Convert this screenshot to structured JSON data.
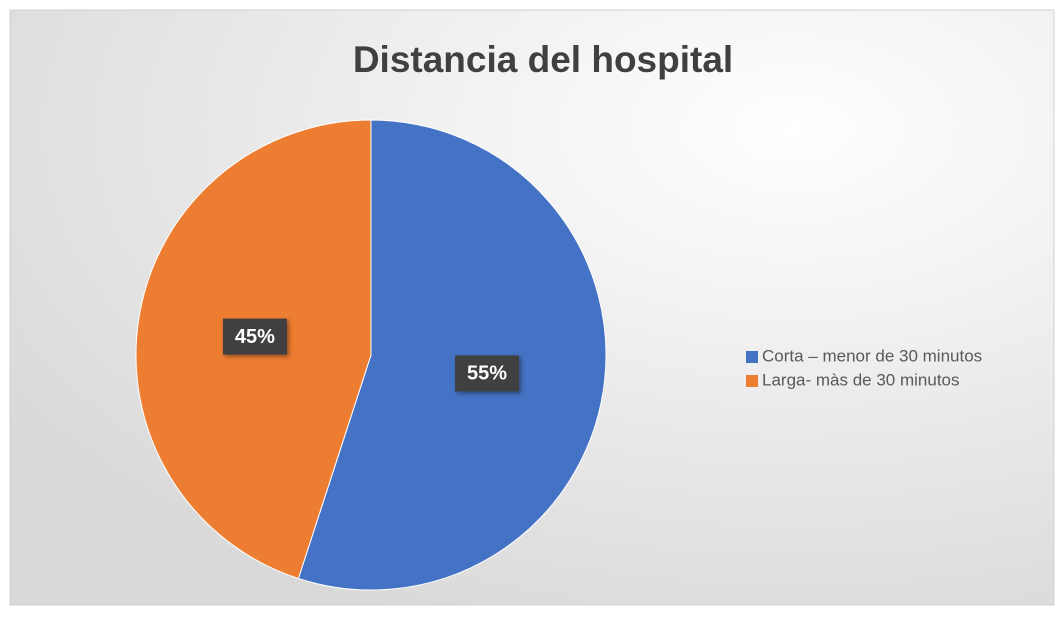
{
  "chart_data": {
    "type": "pie",
    "title": "Distancia del hospital",
    "categories": [
      "Corta – menor de 30 minutos",
      "Larga- màs de 30 minutos"
    ],
    "values": [
      55,
      45
    ],
    "value_labels": [
      "55%",
      "45%"
    ],
    "colors": [
      "#4472c4",
      "#ed7d31"
    ],
    "legend": "right"
  }
}
